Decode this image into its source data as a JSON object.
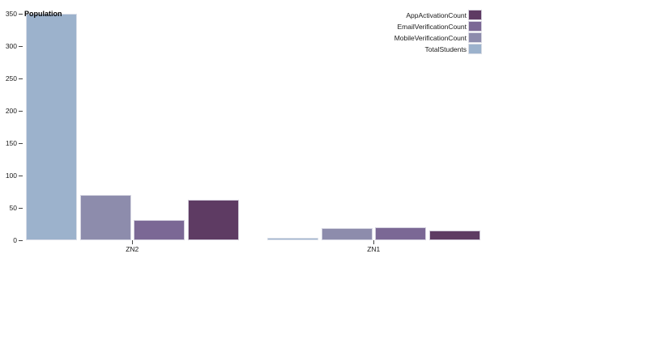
{
  "chart_data": {
    "type": "bar",
    "categories": [
      "ZN2",
      "ZN1"
    ],
    "series": [
      {
        "name": "TotalStudents",
        "color": "#9cb2cc",
        "values": [
          350,
          4
        ]
      },
      {
        "name": "MobileVerificationCount",
        "color": "#8d8cac",
        "values": [
          70,
          19
        ]
      },
      {
        "name": "EmailVerificationCount",
        "color": "#7b6895",
        "values": [
          31,
          20
        ]
      },
      {
        "name": "AppActivationCount",
        "color": "#5e3b63",
        "values": [
          62,
          15
        ]
      }
    ],
    "title": "",
    "xlabel": "",
    "ylabel": "Population",
    "ylim": [
      0,
      350
    ],
    "y_ticks": [
      0,
      50,
      100,
      150,
      200,
      250,
      300,
      350
    ],
    "grid": false,
    "legend_position": "top-right",
    "legend_order": [
      "AppActivationCount",
      "EmailVerificationCount",
      "MobileVerificationCount",
      "TotalStudents"
    ]
  },
  "colors": {
    "background": "#ffffff",
    "text": "#1a1a1a",
    "tick": "#444444"
  }
}
